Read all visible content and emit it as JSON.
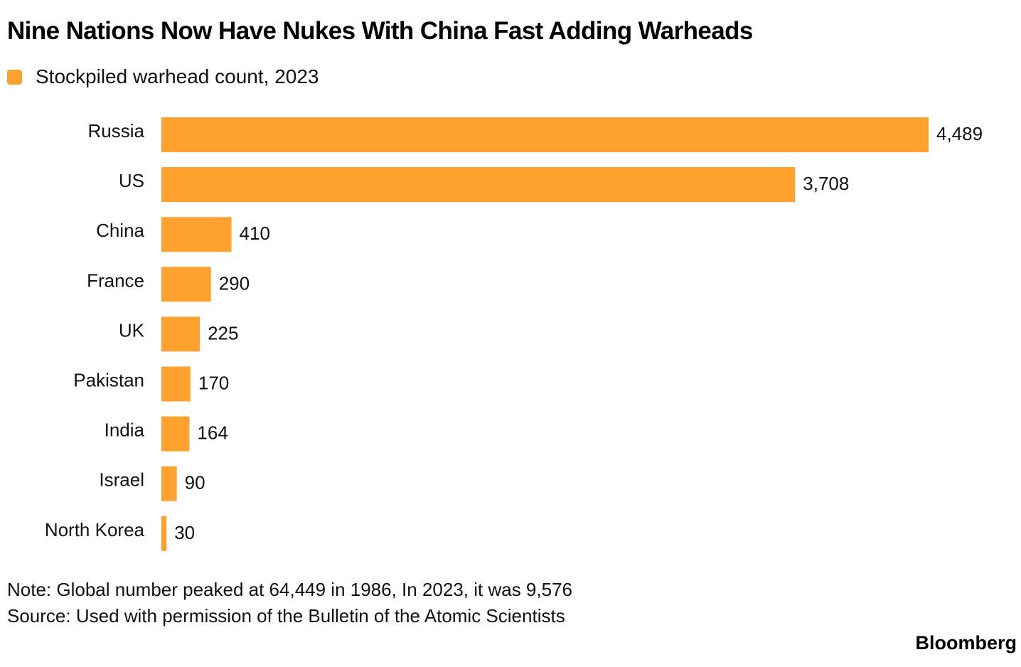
{
  "chart_data": {
    "type": "bar",
    "orientation": "horizontal",
    "title": "Nine Nations Now Have Nukes With China Fast Adding Warheads",
    "legend": [
      {
        "label": "Stockpiled warhead count, 2023",
        "color": "#FFA12C"
      }
    ],
    "legend_placement": "top-left",
    "categories": [
      "Russia",
      "US",
      "China",
      "France",
      "UK",
      "Pakistan",
      "India",
      "Israel",
      "North Korea"
    ],
    "values": [
      4489,
      3708,
      410,
      290,
      225,
      170,
      164,
      90,
      30
    ],
    "value_labels": [
      "4,489",
      "3,708",
      "410",
      "290",
      "225",
      "170",
      "164",
      "90",
      "30"
    ],
    "xlabel": "",
    "ylabel": "",
    "xlim": [
      0,
      4489
    ],
    "grid": false,
    "bar_color": "#FFA12C",
    "note": "Note: Global number peaked at 64,449 in 1986, In 2023, it was 9,576",
    "source": "Source: Used with permission of the Bulletin of the Atomic Scientists"
  },
  "branding": {
    "logo_text": "Bloomberg"
  }
}
